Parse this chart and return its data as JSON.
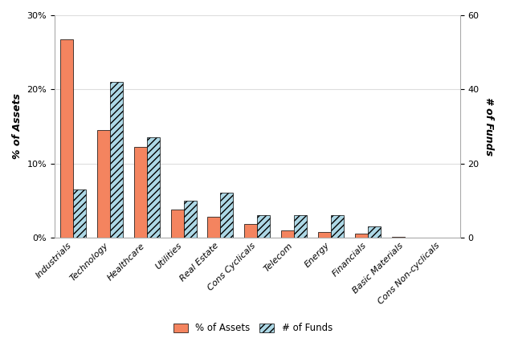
{
  "categories": [
    "Industrials",
    "Technology",
    "Healthcare",
    "Utilities",
    "Real Estate",
    "Cons Cyclicals",
    "Telecom",
    "Energy",
    "Financials",
    "Basic Materials",
    "Cons Non-cyclicals"
  ],
  "pct_assets": [
    0.267,
    0.145,
    0.122,
    0.038,
    0.028,
    0.018,
    0.01,
    0.007,
    0.005,
    0.001,
    0.0
  ],
  "num_funds": [
    13,
    42,
    27,
    10,
    12,
    6,
    6,
    6,
    3,
    0,
    0
  ],
  "bar_color_assets": "#F4845F",
  "bar_color_funds_face": "#ADD8E6",
  "hatch_pattern": "////",
  "ylabel_left": "% of Assets",
  "ylabel_right": "# of Funds",
  "ylim_left": [
    0,
    0.3
  ],
  "ylim_right": [
    0,
    60
  ],
  "yticks_left": [
    0.0,
    0.1,
    0.2,
    0.3
  ],
  "yticks_right": [
    0,
    20,
    40,
    60
  ],
  "legend_labels": [
    "% of Assets",
    "# of Funds"
  ],
  "background_color": "#ffffff",
  "bar_width": 0.35
}
